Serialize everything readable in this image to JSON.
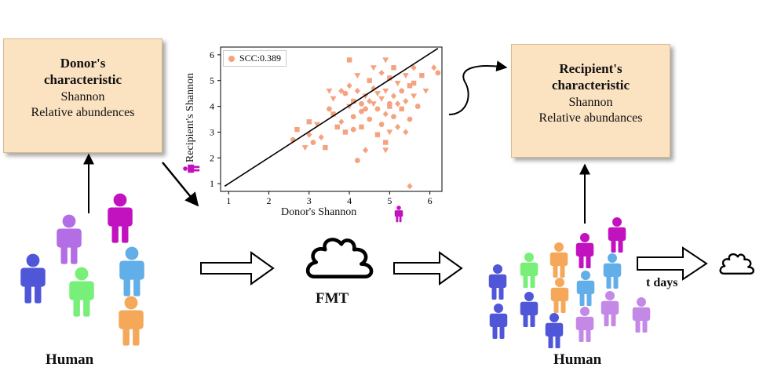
{
  "donor_box": {
    "title_line1": "Donor's",
    "title_line2": "characteristic",
    "line1": "Shannon",
    "line2": "Relative abundences"
  },
  "recipient_box": {
    "title_line1": "Recipient's",
    "title_line2": "characteristic",
    "line1": "Shannon",
    "line2": "Relative abundances"
  },
  "labels": {
    "human_left": "Human",
    "human_right": "Human",
    "fmt": "FMT",
    "t_days": "t days"
  },
  "colors": {
    "box_fill": "#fbe2c1",
    "scatter": "#f4a380",
    "blue": "#4f56d8",
    "violet": "#b36ee6",
    "magenta": "#c212c0",
    "green": "#78ef78",
    "sky": "#62aee8",
    "orange": "#f5a85a",
    "lavender": "#c489e6"
  },
  "icons": [
    "person-icon",
    "poop-icon",
    "arrow-icon"
  ],
  "chart_data": {
    "type": "scatter",
    "title": "",
    "xlabel": "Donor's Shannon",
    "ylabel": "Recipient's Shannon",
    "xlim": [
      0.8,
      6.3
    ],
    "ylim": [
      0.7,
      6.3
    ],
    "xticks": [
      1,
      2,
      3,
      4,
      5,
      6
    ],
    "yticks": [
      1,
      2,
      3,
      4,
      5,
      6
    ],
    "legend": "SCC:0.389",
    "legend_position": "top-left",
    "fit_line": {
      "x": [
        0.9,
        6.2
      ],
      "y": [
        0.9,
        6.25
      ]
    },
    "series": [
      {
        "points": [
          [
            2.6,
            2.7
          ],
          [
            2.7,
            3.1
          ],
          [
            2.9,
            2.4
          ],
          [
            3.0,
            2.9
          ],
          [
            3.1,
            2.6
          ],
          [
            3.0,
            3.4
          ],
          [
            3.2,
            3.3
          ],
          [
            3.3,
            2.8
          ],
          [
            3.5,
            3.9
          ],
          [
            3.6,
            3.7
          ],
          [
            3.6,
            4.3
          ],
          [
            3.8,
            3.4
          ],
          [
            3.9,
            4.5
          ],
          [
            3.9,
            3.0
          ],
          [
            4.0,
            4.0
          ],
          [
            4.0,
            4.8
          ],
          [
            4.1,
            3.6
          ],
          [
            4.1,
            4.2
          ],
          [
            4.2,
            5.2
          ],
          [
            4.2,
            4.6
          ],
          [
            4.3,
            3.8
          ],
          [
            4.3,
            3.2
          ],
          [
            4.4,
            4.4
          ],
          [
            4.4,
            2.3
          ],
          [
            4.5,
            3.5
          ],
          [
            4.5,
            5.0
          ],
          [
            4.6,
            4.1
          ],
          [
            4.6,
            4.7
          ],
          [
            4.7,
            3.9
          ],
          [
            4.7,
            2.9
          ],
          [
            4.8,
            4.3
          ],
          [
            4.8,
            5.3
          ],
          [
            4.8,
            3.3
          ],
          [
            4.9,
            2.6
          ],
          [
            4.9,
            4.6
          ],
          [
            4.9,
            3.7
          ],
          [
            5.0,
            4.1
          ],
          [
            5.0,
            5.1
          ],
          [
            5.0,
            3.0
          ],
          [
            5.1,
            4.4
          ],
          [
            5.1,
            3.6
          ],
          [
            5.1,
            5.5
          ],
          [
            5.2,
            4.9
          ],
          [
            5.2,
            3.2
          ],
          [
            5.3,
            4.6
          ],
          [
            5.3,
            3.9
          ],
          [
            5.4,
            5.2
          ],
          [
            5.4,
            4.2
          ],
          [
            5.5,
            3.5
          ],
          [
            5.5,
            4.8
          ],
          [
            5.6,
            4.4
          ],
          [
            5.6,
            5.5
          ],
          [
            5.7,
            4.0
          ],
          [
            5.8,
            5.2
          ],
          [
            5.9,
            4.6
          ],
          [
            6.1,
            5.5
          ],
          [
            6.2,
            5.3
          ],
          [
            4.0,
            5.8
          ],
          [
            4.9,
            5.8
          ],
          [
            5.5,
            0.9
          ],
          [
            4.2,
            1.9
          ],
          [
            3.4,
            2.4
          ],
          [
            4.6,
            5.5
          ],
          [
            3.8,
            4.6
          ],
          [
            4.4,
            3.9
          ],
          [
            5.0,
            4.0
          ],
          [
            4.7,
            4.5
          ],
          [
            5.2,
            4.1
          ],
          [
            4.3,
            4.1
          ],
          [
            3.7,
            3.2
          ],
          [
            4.9,
            2.3
          ],
          [
            5.4,
            3.0
          ],
          [
            4.1,
            3.1
          ],
          [
            5.6,
            4.9
          ],
          [
            3.5,
            4.6
          ],
          [
            4.5,
            4.2
          ]
        ]
      }
    ]
  }
}
